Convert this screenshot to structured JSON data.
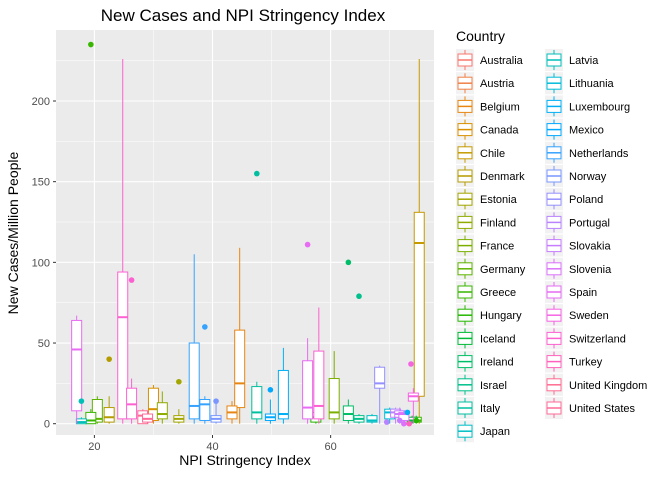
{
  "chart_data": {
    "type": "boxplot",
    "title": "New Cases and NPI Stringency Index",
    "xlabel": "NPI Stringency Index",
    "ylabel": "New Cases/Million People",
    "xlim": [
      13.5,
      77.5
    ],
    "ylim": [
      -7,
      244
    ],
    "x_ticks": [
      20,
      40,
      60
    ],
    "y_ticks": [
      0,
      50,
      100,
      150,
      200
    ],
    "grid": true,
    "legend_position": "right",
    "legend_title": "Country",
    "series": [
      {
        "name": "Australia",
        "color": "#F8766D",
        "boxes": []
      },
      {
        "name": "Austria",
        "color": "#F07F47",
        "boxes": []
      },
      {
        "name": "Belgium",
        "color": "#E68613",
        "boxes": [
          {
            "x": 44.6,
            "q1": 10,
            "median": 25,
            "q3": 58,
            "whisker_low": 0,
            "whisker_high": 109
          },
          {
            "x": 43.3,
            "q1": 3,
            "median": 7,
            "q3": 11,
            "whisker_low": 0,
            "whisker_high": 14
          }
        ]
      },
      {
        "name": "Canada",
        "color": "#D89000",
        "boxes": [
          {
            "x": 30.0,
            "q1": 2,
            "median": 9,
            "q3": 22,
            "whisker_low": 0,
            "whisker_high": 24
          }
        ]
      },
      {
        "name": "Chile",
        "color": "#C49A00",
        "boxes": [
          {
            "x": 75.0,
            "q1": 17,
            "median": 112,
            "q3": 131,
            "whisker_low": 0,
            "whisker_high": 226
          }
        ]
      },
      {
        "name": "Denmark",
        "color": "#B49B00",
        "boxes": [
          {
            "x": 22.5,
            "q1": 1,
            "median": 4,
            "q3": 10,
            "whisker_low": 0,
            "whisker_high": 17
          }
        ]
      },
      {
        "name": "Estonia",
        "color": "#A3A500",
        "boxes": [
          {
            "x": 34.3,
            "q1": 1,
            "median": 3,
            "q3": 5,
            "whisker_low": 0,
            "whisker_high": 9
          }
        ]
      },
      {
        "name": "Finland",
        "color": "#8EAB00",
        "boxes": [
          {
            "x": 31.5,
            "q1": 3,
            "median": 6,
            "q3": 13,
            "whisker_low": 0,
            "whisker_high": 20
          }
        ]
      },
      {
        "name": "France",
        "color": "#7CAE00",
        "boxes": [
          {
            "x": 60.6,
            "q1": 3,
            "median": 7,
            "q3": 28,
            "whisker_low": 0,
            "whisker_high": 45
          }
        ]
      },
      {
        "name": "Germany",
        "color": "#5EB300",
        "boxes": [
          {
            "x": 20.5,
            "q1": 1,
            "median": 3,
            "q3": 15,
            "whisker_low": 0,
            "whisker_high": 17
          }
        ]
      },
      {
        "name": "Greece",
        "color": "#39B600",
        "boxes": [
          {
            "x": 19.4,
            "q1": 0,
            "median": 2,
            "q3": 7,
            "whisker_low": 0,
            "whisker_high": 9
          },
          {
            "x": 74.5,
            "q1": 1,
            "median": 2,
            "q3": 4,
            "whisker_low": 0,
            "whisker_high": 5
          }
        ]
      },
      {
        "name": "Hungary",
        "color": "#24B700",
        "boxes": [
          {
            "x": 57.5,
            "q1": 1,
            "median": 4,
            "q3": 7,
            "whisker_low": 0,
            "whisker_high": 12
          }
        ]
      },
      {
        "name": "Iceland",
        "color": "#00BA38",
        "boxes": [
          {
            "x": 73.8,
            "q1": 1,
            "median": 2,
            "q3": 4,
            "whisker_low": 0,
            "whisker_high": 5
          }
        ]
      },
      {
        "name": "Ireland",
        "color": "#00BE67",
        "boxes": [
          {
            "x": 63.0,
            "q1": 2,
            "median": 6,
            "q3": 11,
            "whisker_low": 0,
            "whisker_high": 15
          }
        ]
      },
      {
        "name": "Israel",
        "color": "#00C08B",
        "boxes": [
          {
            "x": 64.8,
            "q1": 1,
            "median": 3,
            "q3": 5,
            "whisker_low": 0,
            "whisker_high": 6
          }
        ]
      },
      {
        "name": "Italy",
        "color": "#00BFA0",
        "boxes": [
          {
            "x": 47.5,
            "q1": 3,
            "median": 7,
            "q3": 23,
            "whisker_low": 0,
            "whisker_high": 26
          }
        ]
      },
      {
        "name": "Japan",
        "color": "#00BFC4",
        "boxes": [
          {
            "x": 67.0,
            "q1": 1,
            "median": 2,
            "q3": 5,
            "whisker_low": 0,
            "whisker_high": 6
          }
        ]
      },
      {
        "name": "Latvia",
        "color": "#00BFB9",
        "boxes": [
          {
            "x": 17.8,
            "q1": 0,
            "median": 1,
            "q3": 3,
            "whisker_low": 0,
            "whisker_high": 4
          }
        ]
      },
      {
        "name": "Lithuania",
        "color": "#00BCD8",
        "boxes": [
          {
            "x": 70.0,
            "q1": 3,
            "median": 7,
            "q3": 9,
            "whisker_low": 0,
            "whisker_high": 10
          }
        ]
      },
      {
        "name": "Luxembourg",
        "color": "#00B0F6",
        "boxes": [
          {
            "x": 52.0,
            "q1": 3,
            "median": 6,
            "q3": 33,
            "whisker_low": 0,
            "whisker_high": 47
          }
        ]
      },
      {
        "name": "Mexico",
        "color": "#00A9FF",
        "boxes": [
          {
            "x": 49.8,
            "q1": 2,
            "median": 4,
            "q3": 6,
            "whisker_low": 0,
            "whisker_high": 15
          }
        ]
      },
      {
        "name": "Netherlands",
        "color": "#35A2FF",
        "boxes": [
          {
            "x": 36.9,
            "q1": 3,
            "median": 11,
            "q3": 50,
            "whisker_low": 0,
            "whisker_high": 105
          },
          {
            "x": 38.7,
            "q1": 2,
            "median": 12,
            "q3": 15,
            "whisker_low": 0,
            "whisker_high": 17
          }
        ]
      },
      {
        "name": "Norway",
        "color": "#7997FF",
        "boxes": [
          {
            "x": 40.6,
            "q1": 1,
            "median": 3,
            "q3": 5,
            "whisker_low": 0,
            "whisker_high": 13
          }
        ]
      },
      {
        "name": "Poland",
        "color": "#9590FF",
        "boxes": [
          {
            "x": 68.3,
            "q1": 22,
            "median": 25,
            "q3": 35,
            "whisker_low": 0,
            "whisker_high": 36
          }
        ]
      },
      {
        "name": "Portugal",
        "color": "#B983FF",
        "boxes": [
          {
            "x": 71.0,
            "q1": 4,
            "median": 7,
            "q3": 9,
            "whisker_low": 0,
            "whisker_high": 10
          }
        ]
      },
      {
        "name": "Slovakia",
        "color": "#C77CFF",
        "boxes": [
          {
            "x": 71.7,
            "q1": 4,
            "median": 6,
            "q3": 8,
            "whisker_low": 0,
            "whisker_high": 10
          }
        ]
      },
      {
        "name": "Slovenia",
        "color": "#DC71FA",
        "boxes": [
          {
            "x": 72.4,
            "q1": 2,
            "median": 6,
            "q3": 7,
            "whisker_low": 0,
            "whisker_high": 8
          }
        ]
      },
      {
        "name": "Spain",
        "color": "#E76BF3",
        "boxes": [
          {
            "x": 17.0,
            "q1": 8,
            "median": 46,
            "q3": 64,
            "whisker_low": 0,
            "whisker_high": 67
          },
          {
            "x": 56.1,
            "q1": 3,
            "median": 10,
            "q3": 39,
            "whisker_low": 0,
            "whisker_high": 53
          }
        ]
      },
      {
        "name": "Sweden",
        "color": "#F564E3",
        "boxes": [
          {
            "x": 74.0,
            "q1": 14,
            "median": 17,
            "q3": 19,
            "whisker_low": 0,
            "whisker_high": 22
          }
        ]
      },
      {
        "name": "Switzerland",
        "color": "#FD61D1",
        "boxes": [
          {
            "x": 24.8,
            "q1": 3,
            "median": 66,
            "q3": 94,
            "whisker_low": 0,
            "whisker_high": 226
          },
          {
            "x": 26.3,
            "q1": 3,
            "median": 12,
            "q3": 22,
            "whisker_low": 0,
            "whisker_high": 28
          },
          {
            "x": 58.0,
            "q1": 3,
            "median": 11,
            "q3": 45,
            "whisker_low": 0,
            "whisker_high": 72
          }
        ]
      },
      {
        "name": "Turkey",
        "color": "#FF62BC",
        "boxes": []
      },
      {
        "name": "United Kingdom",
        "color": "#FF6C91",
        "boxes": [
          {
            "x": 28.2,
            "q1": 0,
            "median": 5,
            "q3": 8,
            "whisker_low": 0,
            "whisker_high": 9
          }
        ]
      },
      {
        "name": "United States",
        "color": "#FF6A98",
        "boxes": [
          {
            "x": 29.0,
            "q1": 1,
            "median": 3,
            "q3": 6,
            "whisker_low": 0,
            "whisker_high": 8
          }
        ]
      }
    ],
    "points": [
      {
        "x": 19.4,
        "y": 235,
        "color": "#39B600"
      },
      {
        "x": 17.8,
        "y": 14,
        "color": "#00BFB9"
      },
      {
        "x": 22.5,
        "y": 40,
        "color": "#B49B00"
      },
      {
        "x": 26.3,
        "y": 89,
        "color": "#FD61D1"
      },
      {
        "x": 34.3,
        "y": 26,
        "color": "#A3A500"
      },
      {
        "x": 38.7,
        "y": 60,
        "color": "#35A2FF"
      },
      {
        "x": 40.6,
        "y": 14,
        "color": "#7997FF"
      },
      {
        "x": 47.5,
        "y": 155,
        "color": "#00BFA0"
      },
      {
        "x": 49.8,
        "y": 21,
        "color": "#00A9FF"
      },
      {
        "x": 56.1,
        "y": 111,
        "color": "#E76BF3"
      },
      {
        "x": 63.0,
        "y": 100,
        "color": "#00BE67"
      },
      {
        "x": 64.8,
        "y": 79,
        "color": "#00C08B"
      },
      {
        "x": 69.5,
        "y": 1,
        "color": "#B983FF"
      },
      {
        "x": 71.7,
        "y": 2,
        "color": "#C77CFF"
      },
      {
        "x": 72.4,
        "y": 0,
        "color": "#DC71FA"
      },
      {
        "x": 73.3,
        "y": 0,
        "color": "#FF62BC"
      },
      {
        "x": 73.6,
        "y": 37,
        "color": "#F564E3"
      },
      {
        "x": 74.5,
        "y": 2,
        "color": "#24B700"
      },
      {
        "x": 73.0,
        "y": 7,
        "color": "#00B0F6"
      }
    ]
  }
}
